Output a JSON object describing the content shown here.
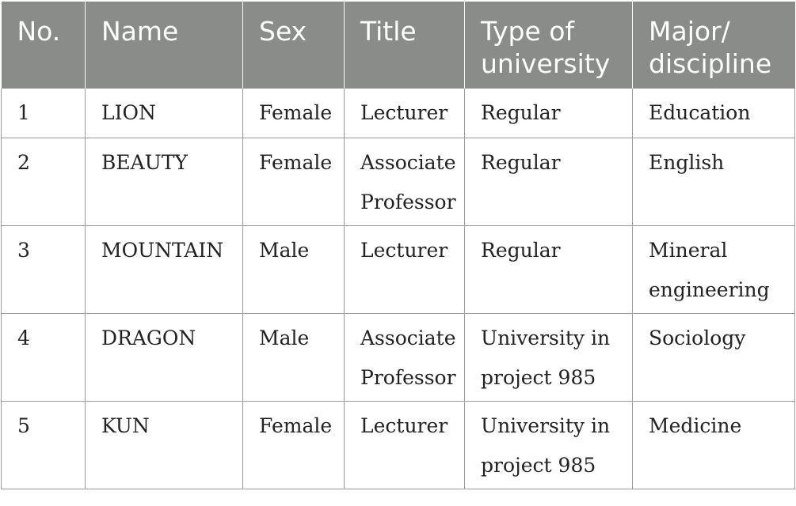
{
  "table": {
    "headers": [
      "No.",
      "Name",
      "Sex",
      "Title",
      "Type of university",
      "Major/ discipline"
    ],
    "rows": [
      {
        "no": "1",
        "name": "LION",
        "sex": "Female",
        "title": "Lecturer",
        "type": "Regular",
        "major": "Education"
      },
      {
        "no": "2",
        "name": "BEAUTY",
        "sex": "Female",
        "title": "Associate Professor",
        "type": "Regular",
        "major": "English"
      },
      {
        "no": "3",
        "name": "MOUNTAIN",
        "sex": "Male",
        "title": "Lecturer",
        "type": "Regular",
        "major": "Mineral engineering"
      },
      {
        "no": "4",
        "name": "DRAGON",
        "sex": "Male",
        "title": "Associate Professor",
        "type": "University in project 985",
        "major": "Sociology"
      },
      {
        "no": "5",
        "name": "KUN",
        "sex": "Female",
        "title": "Lecturer",
        "type": "University in project 985",
        "major": "Medicine"
      }
    ]
  },
  "colors": {
    "header_bg": "#8a8c8a",
    "header_text": "#ffffff",
    "border": "#9a9a9a"
  }
}
